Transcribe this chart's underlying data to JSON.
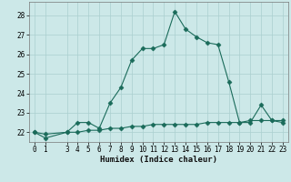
{
  "x": [
    0,
    1,
    3,
    4,
    5,
    6,
    7,
    8,
    9,
    10,
    11,
    12,
    13,
    14,
    15,
    16,
    17,
    18,
    19,
    20,
    21,
    22,
    23
  ],
  "y_main": [
    22.0,
    21.7,
    22.0,
    22.5,
    22.5,
    22.2,
    23.5,
    24.3,
    25.7,
    26.3,
    26.3,
    26.5,
    28.2,
    27.3,
    26.9,
    26.6,
    26.5,
    24.6,
    22.5,
    22.5,
    23.4,
    22.6,
    22.5
  ],
  "y_ref": [
    22.0,
    21.9,
    22.0,
    22.0,
    22.1,
    22.1,
    22.2,
    22.2,
    22.3,
    22.3,
    22.4,
    22.4,
    22.4,
    22.4,
    22.4,
    22.5,
    22.5,
    22.5,
    22.5,
    22.6,
    22.6,
    22.6,
    22.6
  ],
  "line_color": "#1a6b5a",
  "bg_color": "#cce8e8",
  "grid_color": "#aacfcf",
  "xlabel": "Humidex (Indice chaleur)",
  "ylim": [
    21.5,
    28.7
  ],
  "xlim": [
    -0.5,
    23.5
  ],
  "yticks": [
    22,
    23,
    24,
    25,
    26,
    27,
    28
  ],
  "xticks": [
    0,
    1,
    3,
    4,
    5,
    6,
    7,
    8,
    9,
    10,
    11,
    12,
    13,
    14,
    15,
    16,
    17,
    18,
    19,
    20,
    21,
    22,
    23
  ],
  "marker": "D",
  "markersize": 2.5,
  "linewidth": 0.8
}
